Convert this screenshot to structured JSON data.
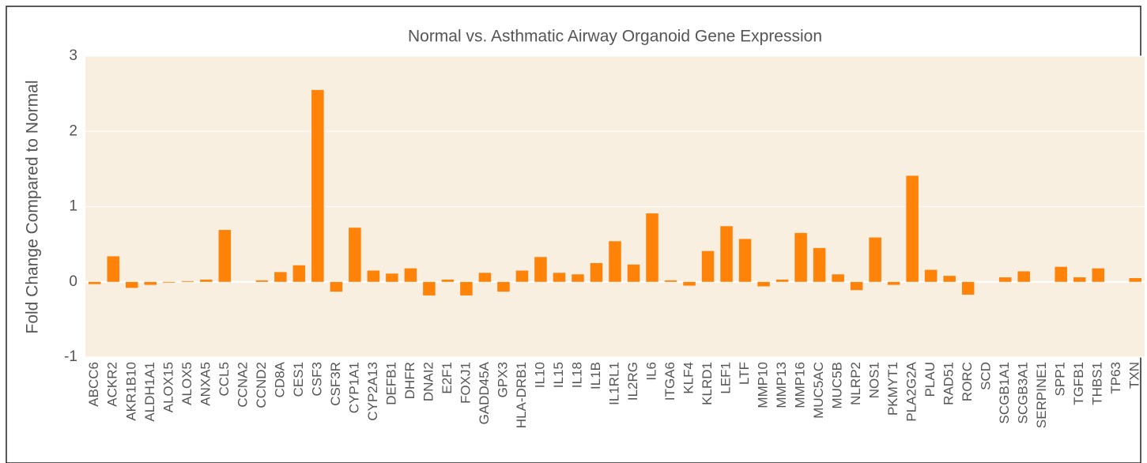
{
  "chart_data": {
    "type": "bar",
    "title": "Normal vs. Asthmatic Airway Organoid Gene Expression",
    "y_label": "Fold Change Compared to Normal",
    "categories": [
      "ABCC6",
      "ACKR2",
      "AKR1B10",
      "ALDH1A1",
      "ALOX15",
      "ALOX5",
      "ANXA5",
      "CCL5",
      "CCNA2",
      "CCND2",
      "CD8A",
      "CES1",
      "CSF3",
      "CSF3R",
      "CYP1A1",
      "CYP2A13",
      "DEFB1",
      "DHFR",
      "DNAI2",
      "E2F1",
      "FOXJ1",
      "GADD45A",
      "GPX3",
      "HLA-DRB1",
      "IL10",
      "IL15",
      "IL18",
      "IL1B",
      "IL1RL1",
      "IL2RG",
      "IL6",
      "ITGA6",
      "KLF4",
      "KLRD1",
      "LEF1",
      "LTF",
      "MMP10",
      "MMP13",
      "MMP16",
      "MUC5AC",
      "MUC5B",
      "NLRP2",
      "NOS1",
      "PKMYT1",
      "PLA2G2A",
      "PLAU",
      "RAD51",
      "RORC",
      "SCD",
      "SCGB1A1",
      "SCGB3A1",
      "SERPINE1",
      "SPP1",
      "TGFB1",
      "THBS1",
      "TP63",
      "TXN"
    ],
    "values": [
      -0.03,
      0.34,
      -0.08,
      -0.04,
      -0.01,
      0.01,
      0.03,
      0.69,
      0,
      0.02,
      0.13,
      0.22,
      2.55,
      -0.13,
      0.72,
      0.15,
      0.11,
      0.18,
      -0.18,
      0.03,
      -0.18,
      0.12,
      -0.13,
      0.15,
      0.33,
      0.12,
      0.1,
      0.25,
      0.54,
      0.23,
      0.91,
      0.02,
      -0.05,
      0.41,
      0.74,
      0.57,
      -0.06,
      0.03,
      0.65,
      0.45,
      0.1,
      -0.11,
      0.59,
      -0.04,
      1.41,
      0.16,
      0.08,
      -0.17,
      0,
      0.06,
      0.14,
      0,
      0.2,
      0.06,
      0.18,
      0,
      0.05
    ],
    "color": "#ff8209",
    "ylim": [
      -1,
      3
    ],
    "yticks": [
      -1,
      0,
      1,
      2,
      3
    ],
    "grid": true
  }
}
